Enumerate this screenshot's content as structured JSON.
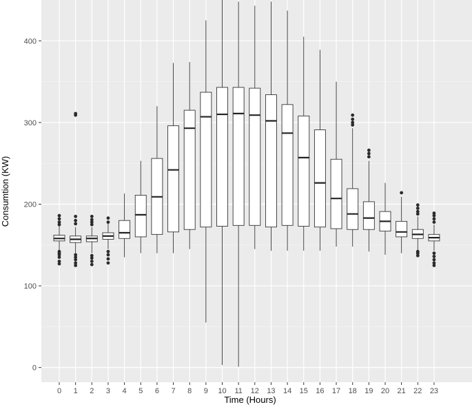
{
  "chart_data": {
    "type": "boxplot",
    "xlabel": "Time (Hours)",
    "ylabel": "Consumtion (KW)",
    "ylim": [
      -18,
      450
    ],
    "y_ticks": [
      0,
      100,
      200,
      300,
      400
    ],
    "grid": true,
    "categories": [
      "0",
      "1",
      "2",
      "3",
      "4",
      "5",
      "6",
      "7",
      "8",
      "9",
      "10",
      "11",
      "12",
      "13",
      "14",
      "15",
      "16",
      "17",
      "18",
      "19",
      "20",
      "21",
      "22",
      "23"
    ],
    "boxes": [
      {
        "q1": 155,
        "median": 158,
        "q3": 162,
        "whisker_low": 143,
        "whisker_high": 173,
        "outliers": [
          127,
          130,
          135,
          138,
          140,
          142,
          175,
          178,
          182,
          186
        ]
      },
      {
        "q1": 153,
        "median": 157,
        "q3": 161,
        "whisker_low": 140,
        "whisker_high": 172,
        "outliers": [
          125,
          128,
          132,
          135,
          138,
          176,
          180,
          185,
          309,
          311
        ]
      },
      {
        "q1": 154,
        "median": 158,
        "q3": 161,
        "whisker_low": 140,
        "whisker_high": 172,
        "outliers": [
          126,
          130,
          134,
          137,
          175,
          178,
          181,
          185
        ]
      },
      {
        "q1": 157,
        "median": 161,
        "q3": 165,
        "whisker_low": 145,
        "whisker_high": 176,
        "outliers": [
          128,
          133,
          138,
          142,
          178,
          183
        ]
      },
      {
        "q1": 158,
        "median": 165,
        "q3": 180,
        "whisker_low": 135,
        "whisker_high": 213,
        "outliers": []
      },
      {
        "q1": 160,
        "median": 187,
        "q3": 211,
        "whisker_low": 140,
        "whisker_high": 253,
        "outliers": []
      },
      {
        "q1": 163,
        "median": 209,
        "q3": 256,
        "whisker_low": 140,
        "whisker_high": 320,
        "outliers": []
      },
      {
        "q1": 166,
        "median": 242,
        "q3": 296,
        "whisker_low": 140,
        "whisker_high": 373,
        "outliers": []
      },
      {
        "q1": 169,
        "median": 293,
        "q3": 315,
        "whisker_low": 145,
        "whisker_high": 374,
        "outliers": []
      },
      {
        "q1": 172,
        "median": 307,
        "q3": 337,
        "whisker_low": 55,
        "whisker_high": 425,
        "outliers": []
      },
      {
        "q1": 173,
        "median": 310,
        "q3": 343,
        "whisker_low": 3,
        "whisker_high": 450,
        "outliers": []
      },
      {
        "q1": 174,
        "median": 311,
        "q3": 343,
        "whisker_low": 1,
        "whisker_high": 448,
        "outliers": []
      },
      {
        "q1": 174,
        "median": 309,
        "q3": 342,
        "whisker_low": 145,
        "whisker_high": 443,
        "outliers": []
      },
      {
        "q1": 172,
        "median": 302,
        "q3": 334,
        "whisker_low": 143,
        "whisker_high": 448,
        "outliers": []
      },
      {
        "q1": 174,
        "median": 287,
        "q3": 322,
        "whisker_low": 143,
        "whisker_high": 437,
        "outliers": []
      },
      {
        "q1": 173,
        "median": 257,
        "q3": 308,
        "whisker_low": 143,
        "whisker_high": 405,
        "outliers": []
      },
      {
        "q1": 172,
        "median": 226,
        "q3": 291,
        "whisker_low": 143,
        "whisker_high": 389,
        "outliers": []
      },
      {
        "q1": 170,
        "median": 207,
        "q3": 255,
        "whisker_low": 148,
        "whisker_high": 350,
        "outliers": []
      },
      {
        "q1": 169,
        "median": 188,
        "q3": 219,
        "whisker_low": 148,
        "whisker_high": 293,
        "outliers": [
          297,
          300,
          304,
          309
        ]
      },
      {
        "q1": 169,
        "median": 183,
        "q3": 203,
        "whisker_low": 142,
        "whisker_high": 253,
        "outliers": [
          258,
          262,
          266
        ]
      },
      {
        "q1": 167,
        "median": 179,
        "q3": 191,
        "whisker_low": 138,
        "whisker_high": 226,
        "outliers": []
      },
      {
        "q1": 160,
        "median": 166,
        "q3": 179,
        "whisker_low": 140,
        "whisker_high": 209,
        "outliers": [
          214
        ]
      },
      {
        "q1": 158,
        "median": 163,
        "q3": 169,
        "whisker_low": 143,
        "whisker_high": 185,
        "outliers": [
          137,
          140,
          142,
          188,
          191,
          195,
          199
        ]
      },
      {
        "q1": 155,
        "median": 159,
        "q3": 163,
        "whisker_low": 143,
        "whisker_high": 175,
        "outliers": [
          125,
          128,
          132,
          136,
          140,
          178,
          182,
          186,
          189
        ]
      }
    ]
  }
}
